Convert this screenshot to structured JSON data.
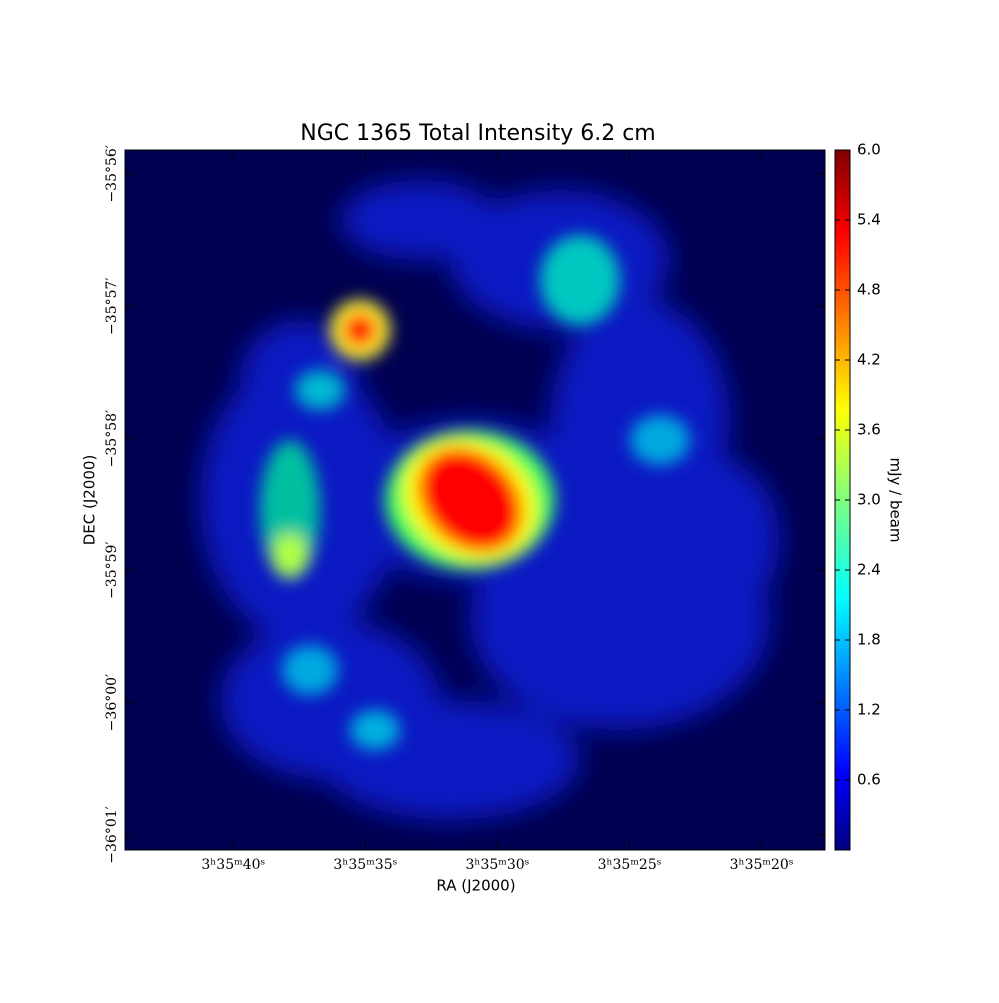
{
  "chart_data": {
    "type": "image",
    "title": "NGC 1365 Total Intensity 6.2 cm",
    "xlabel": "RA (J2000)",
    "ylabel": "DEC (J2000)",
    "colorbar_label": "mJy / beam",
    "xlim": [
      44.1,
      17.6
    ],
    "xticks": [
      {
        "value": 40,
        "label": "3ʰ35ᵐ40ˢ"
      },
      {
        "value": 35,
        "label": "3ʰ35ᵐ35ˢ"
      },
      {
        "value": 30,
        "label": "3ʰ35ᵐ30ˢ"
      },
      {
        "value": 25,
        "label": "3ʰ35ᵐ25ˢ"
      },
      {
        "value": 20,
        "label": "3ʰ35ᵐ20ˢ"
      }
    ],
    "ylim": [
      -36.0186,
      -35.9303
    ],
    "yticks": [
      {
        "value": -35.9333,
        "label": "−35°56′"
      },
      {
        "value": -35.95,
        "label": "−35°57′"
      },
      {
        "value": -35.9667,
        "label": "−35°58′"
      },
      {
        "value": -35.9833,
        "label": "−35°59′"
      },
      {
        "value": -36.0,
        "label": "−36°00′"
      },
      {
        "value": -36.0167,
        "label": "−36°01′"
      }
    ],
    "clim": [
      0,
      6
    ],
    "cticks": [
      0.6,
      1.2,
      1.8,
      2.4,
      {
        "value": 3,
        "label": "3.0"
      },
      3.6,
      4.2,
      4.8,
      5.4,
      {
        "value": 6,
        "label": "6.0"
      }
    ]
  }
}
